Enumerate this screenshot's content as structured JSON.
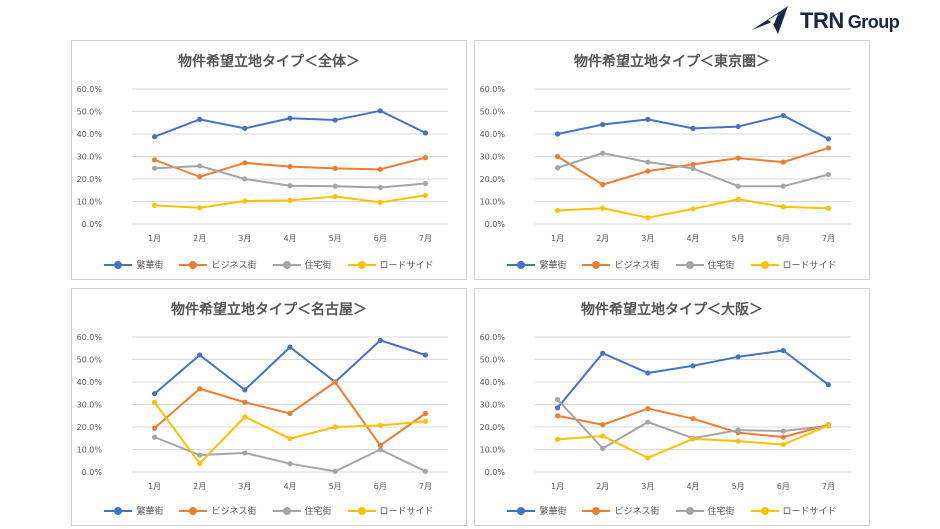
{
  "logo": {
    "text": "TRN",
    "sub": "Group"
  },
  "legend": {
    "series_colors": [
      "#4472c4",
      "#ed7d31",
      "#a5a5a5",
      "#ffc000"
    ]
  },
  "chart_data": [
    {
      "type": "line",
      "title": "物件希望立地タイプ＜全体＞",
      "categories": [
        "1月",
        "2月",
        "3月",
        "4月",
        "5月",
        "6月",
        "7月"
      ],
      "y_ticks": [
        "0.0%",
        "10.0%",
        "20.0%",
        "30.0%",
        "40.0%",
        "50.0%",
        "60.0%"
      ],
      "ylim": [
        0,
        60
      ],
      "series": [
        {
          "name": "繁華街",
          "values": [
            38.8,
            46.5,
            42.5,
            47,
            46.2,
            50.3,
            40.5
          ]
        },
        {
          "name": "ビジネス街",
          "values": [
            28.5,
            21,
            27.2,
            25.5,
            24.7,
            24.3,
            29.5
          ]
        },
        {
          "name": "住宅街",
          "values": [
            24.8,
            25.8,
            20,
            17,
            16.8,
            16.2,
            18
          ]
        },
        {
          "name": "ロードサイド",
          "values": [
            8.3,
            7.2,
            10.2,
            10.5,
            12.2,
            9.6,
            12.7
          ]
        }
      ]
    },
    {
      "type": "line",
      "title": "物件希望立地タイプ＜東京圏＞",
      "categories": [
        "1月",
        "2月",
        "3月",
        "4月",
        "5月",
        "6月",
        "7月"
      ],
      "y_ticks": [
        "0.0%",
        "10.0%",
        "20.0%",
        "30.0%",
        "40.0%",
        "50.0%",
        "60.0%"
      ],
      "ylim": [
        0,
        60
      ],
      "series": [
        {
          "name": "繁華街",
          "values": [
            40,
            44.2,
            46.5,
            42.5,
            43.3,
            48.2,
            37.8
          ]
        },
        {
          "name": "ビジネス街",
          "values": [
            30,
            17.5,
            23.5,
            26.5,
            29.3,
            27.5,
            33.8
          ]
        },
        {
          "name": "住宅街",
          "values": [
            25,
            31.5,
            27.5,
            24.7,
            16.8,
            16.8,
            22
          ]
        },
        {
          "name": "ロードサイド",
          "values": [
            6,
            7,
            2.8,
            6.7,
            11,
            7.6,
            7
          ]
        }
      ]
    },
    {
      "type": "line",
      "title": "物件希望立地タイプ＜名古屋＞",
      "categories": [
        "1月",
        "2月",
        "3月",
        "4月",
        "5月",
        "6月",
        "7月"
      ],
      "y_ticks": [
        "0.0%",
        "10.0%",
        "20.0%",
        "30.0%",
        "40.0%",
        "50.0%",
        "60.0%"
      ],
      "ylim": [
        0,
        60
      ],
      "series": [
        {
          "name": "繁華街",
          "values": [
            34.8,
            52,
            36.5,
            55.5,
            40,
            58.5,
            52
          ]
        },
        {
          "name": "ビジネス街",
          "values": [
            19.5,
            37,
            31,
            26,
            40,
            11.8,
            26
          ]
        },
        {
          "name": "住宅街",
          "values": [
            15.5,
            7.5,
            8.5,
            3.7,
            0.3,
            10,
            0.3
          ]
        },
        {
          "name": "ロードサイド",
          "values": [
            31,
            3.8,
            24.5,
            14.8,
            20,
            20.7,
            22.5
          ]
        }
      ]
    },
    {
      "type": "line",
      "title": "物件希望立地タイプ＜大阪＞",
      "categories": [
        "1月",
        "2月",
        "3月",
        "4月",
        "5月",
        "6月",
        "7月"
      ],
      "y_ticks": [
        "0.0%",
        "10.0%",
        "20.0%",
        "30.0%",
        "40.0%",
        "50.0%",
        "60.0%"
      ],
      "ylim": [
        0,
        60
      ],
      "series": [
        {
          "name": "繁華街",
          "values": [
            28.5,
            52.8,
            44,
            47.2,
            51.2,
            54,
            38.8
          ]
        },
        {
          "name": "ビジネス街",
          "values": [
            25,
            21,
            28.2,
            23.7,
            17.5,
            15.5,
            21
          ]
        },
        {
          "name": "住宅街",
          "values": [
            32.2,
            10.5,
            22.2,
            15,
            18.6,
            18.2,
            20.5
          ]
        },
        {
          "name": "ロードサイド",
          "values": [
            14.5,
            16,
            6.3,
            14.7,
            13.7,
            12.2,
            20.7
          ]
        }
      ]
    }
  ]
}
